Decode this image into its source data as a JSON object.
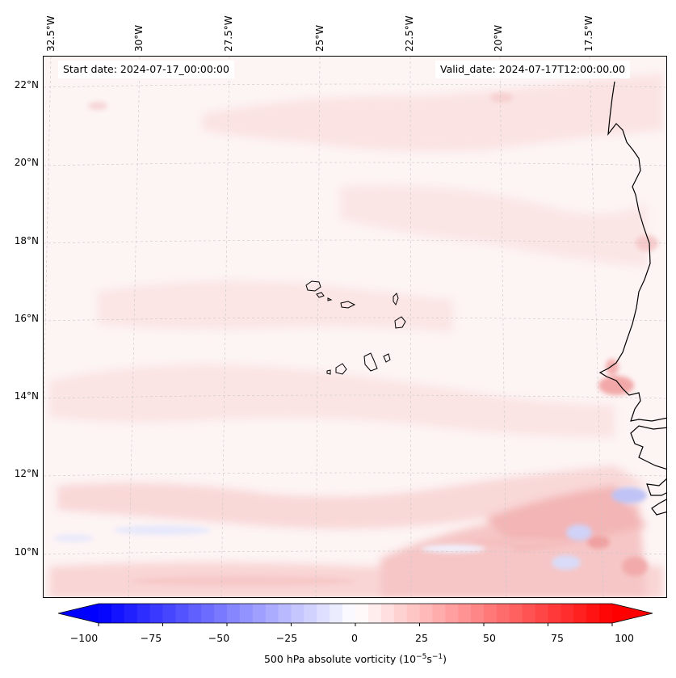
{
  "header": {
    "start_date": "Start date: 2024-07-17_00:00:00",
    "valid_date": "Valid_date: 2024-07-17T12:00:00.00"
  },
  "lon_labels": [
    "32.5°W",
    "30°W",
    "27.5°W",
    "25°W",
    "22.5°W",
    "20°W",
    "17.5°W"
  ],
  "lat_labels": [
    "22°N",
    "20°N",
    "18°N",
    "16°N",
    "14°N",
    "12°N",
    "10°N"
  ],
  "colorbar": {
    "label": "500 hPa absolute vorticity (10",
    "label_exp1": "−5",
    "label_mid": "s",
    "label_exp2": "−1",
    "label_end": ")",
    "tick_labels": [
      "−100",
      "−75",
      "−50",
      "−25",
      "0",
      "25",
      "50",
      "75",
      "100"
    ],
    "min": -100,
    "max": 100,
    "levels": 40,
    "negative_color": "#0000ff",
    "zero_color": "#ffffff",
    "positive_color": "#ff0000"
  },
  "map": {
    "field": "500 hPa absolute vorticity",
    "projection": "Lambert conformal",
    "features": [
      "cape-verde-islands",
      "west-africa-coastline",
      "graticule"
    ]
  }
}
